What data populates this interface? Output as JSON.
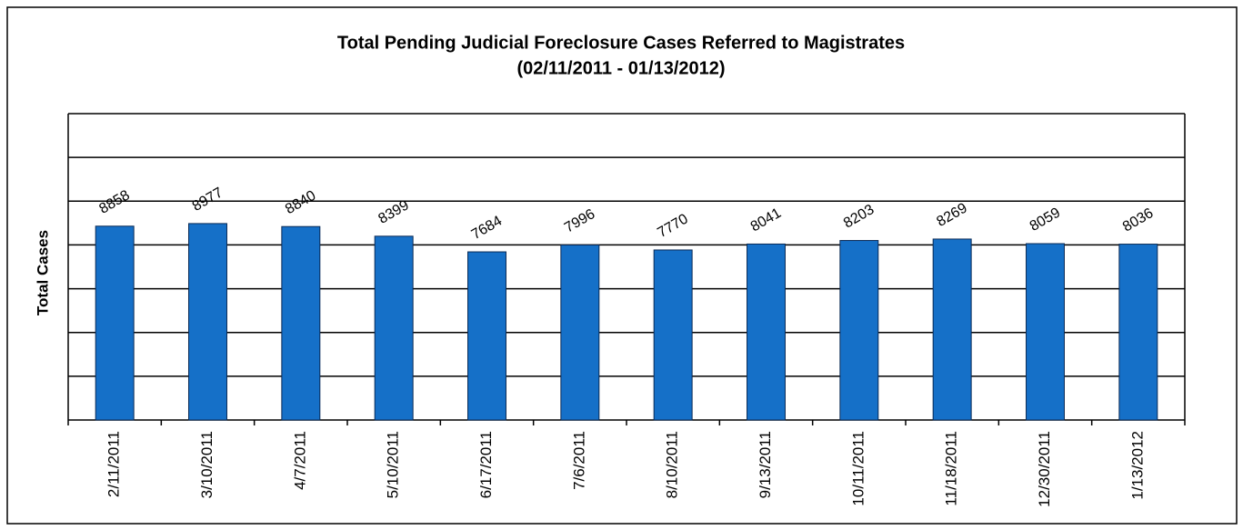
{
  "chart_data": {
    "type": "bar",
    "title": "Total Pending Judicial Foreclosure Cases Referred to Magistrates",
    "subtitle": "(02/11/2011  - 01/13/2012)",
    "y_label": "Total Cases",
    "categories": [
      "2/11/2011",
      "3/10/2011",
      "4/7/2011",
      "5/10/2011",
      "6/17/2011",
      "7/6/2011",
      "8/10/2011",
      "9/13/2011",
      "10/11/2011",
      "11/18/2011",
      "12/30/2011",
      "1/13/2012"
    ],
    "values": [
      8858,
      8977,
      8840,
      8399,
      7684,
      7996,
      7770,
      8041,
      8203,
      8269,
      8059,
      8036
    ],
    "color": "#1570c8",
    "ylim": [
      0,
      14000
    ],
    "yticks": [
      0,
      2000,
      4000,
      6000,
      8000,
      10000,
      12000,
      14000
    ],
    "grid": true
  }
}
